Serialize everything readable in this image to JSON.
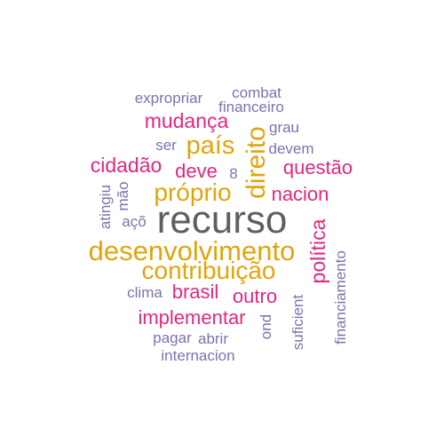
{
  "colors": {
    "dark_gray": "#5f5f5f",
    "gold": "#e2a40b",
    "magenta": "#e0287f",
    "purple": "#7c73ae"
  },
  "words": [
    {
      "text": "recurso",
      "color": "dark_gray"
    },
    {
      "text": "desenvolvimento",
      "color": "gold"
    },
    {
      "text": "contribuição",
      "color": "gold"
    },
    {
      "text": "próprio",
      "color": "gold"
    },
    {
      "text": "direito",
      "color": "gold"
    },
    {
      "text": "país",
      "color": "gold"
    },
    {
      "text": "política",
      "color": "magenta"
    },
    {
      "text": "mudança",
      "color": "magenta"
    },
    {
      "text": "cidadão",
      "color": "magenta"
    },
    {
      "text": "questão",
      "color": "magenta"
    },
    {
      "text": "nacion",
      "color": "magenta"
    },
    {
      "text": "deve",
      "color": "magenta"
    },
    {
      "text": "brasil",
      "color": "magenta"
    },
    {
      "text": "outro",
      "color": "magenta"
    },
    {
      "text": "implementar",
      "color": "magenta"
    },
    {
      "text": "expropriar",
      "color": "purple"
    },
    {
      "text": "combat",
      "color": "purple"
    },
    {
      "text": "financeiro",
      "color": "purple"
    },
    {
      "text": "grau",
      "color": "purple"
    },
    {
      "text": "ser",
      "color": "purple"
    },
    {
      "text": "devem",
      "color": "purple"
    },
    {
      "text": "8",
      "color": "purple"
    },
    {
      "text": "atingiu",
      "color": "purple"
    },
    {
      "text": "mão",
      "color": "purple"
    },
    {
      "text": "açõ",
      "color": "purple"
    },
    {
      "text": "clima",
      "color": "purple"
    },
    {
      "text": "pagar",
      "color": "purple"
    },
    {
      "text": "abrir",
      "color": "purple"
    },
    {
      "text": "internacion",
      "color": "purple"
    },
    {
      "text": "ond",
      "color": "purple"
    },
    {
      "text": "suficient",
      "color": "purple"
    },
    {
      "text": "financiamento",
      "color": "purple"
    }
  ]
}
